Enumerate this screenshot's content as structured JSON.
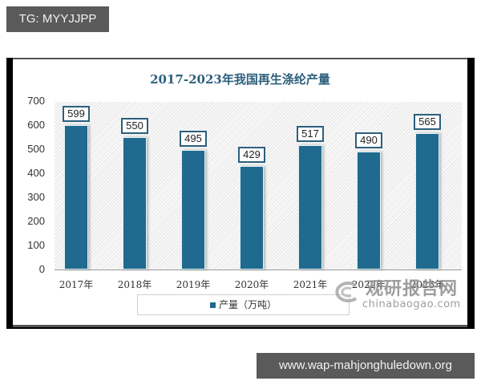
{
  "overlays": {
    "top_tag": "TG: MYYJJPP",
    "bottom_tag": "www.wap-mahjonghuledown.org"
  },
  "chart_data": {
    "type": "bar",
    "title": "2017-2023年我国再生涤纶产量",
    "categories": [
      "2017年",
      "2018年",
      "2019年",
      "2020年",
      "2021年",
      "2022年",
      "2023年"
    ],
    "series": [
      {
        "name": "产量（万吨）",
        "values": [
          599,
          550,
          495,
          429,
          517,
          490,
          565
        ],
        "color": "#1f6a8e"
      }
    ],
    "xlabel": "",
    "ylabel": "",
    "ylim": [
      0,
      700
    ],
    "yticks": [
      "700",
      "600",
      "500",
      "400",
      "300",
      "200",
      "100",
      "0"
    ],
    "grid": false,
    "legend_position": "bottom",
    "data_labels": [
      "599",
      "550",
      "495",
      "429",
      "517",
      "490",
      "565"
    ]
  },
  "watermark": {
    "name_cn": "观研报告网",
    "domain": "chinabaogao.com"
  },
  "colors": {
    "bar": "#1f6a8e",
    "title": "#2c5f7c",
    "tag_bg": "#5a5a5a"
  }
}
